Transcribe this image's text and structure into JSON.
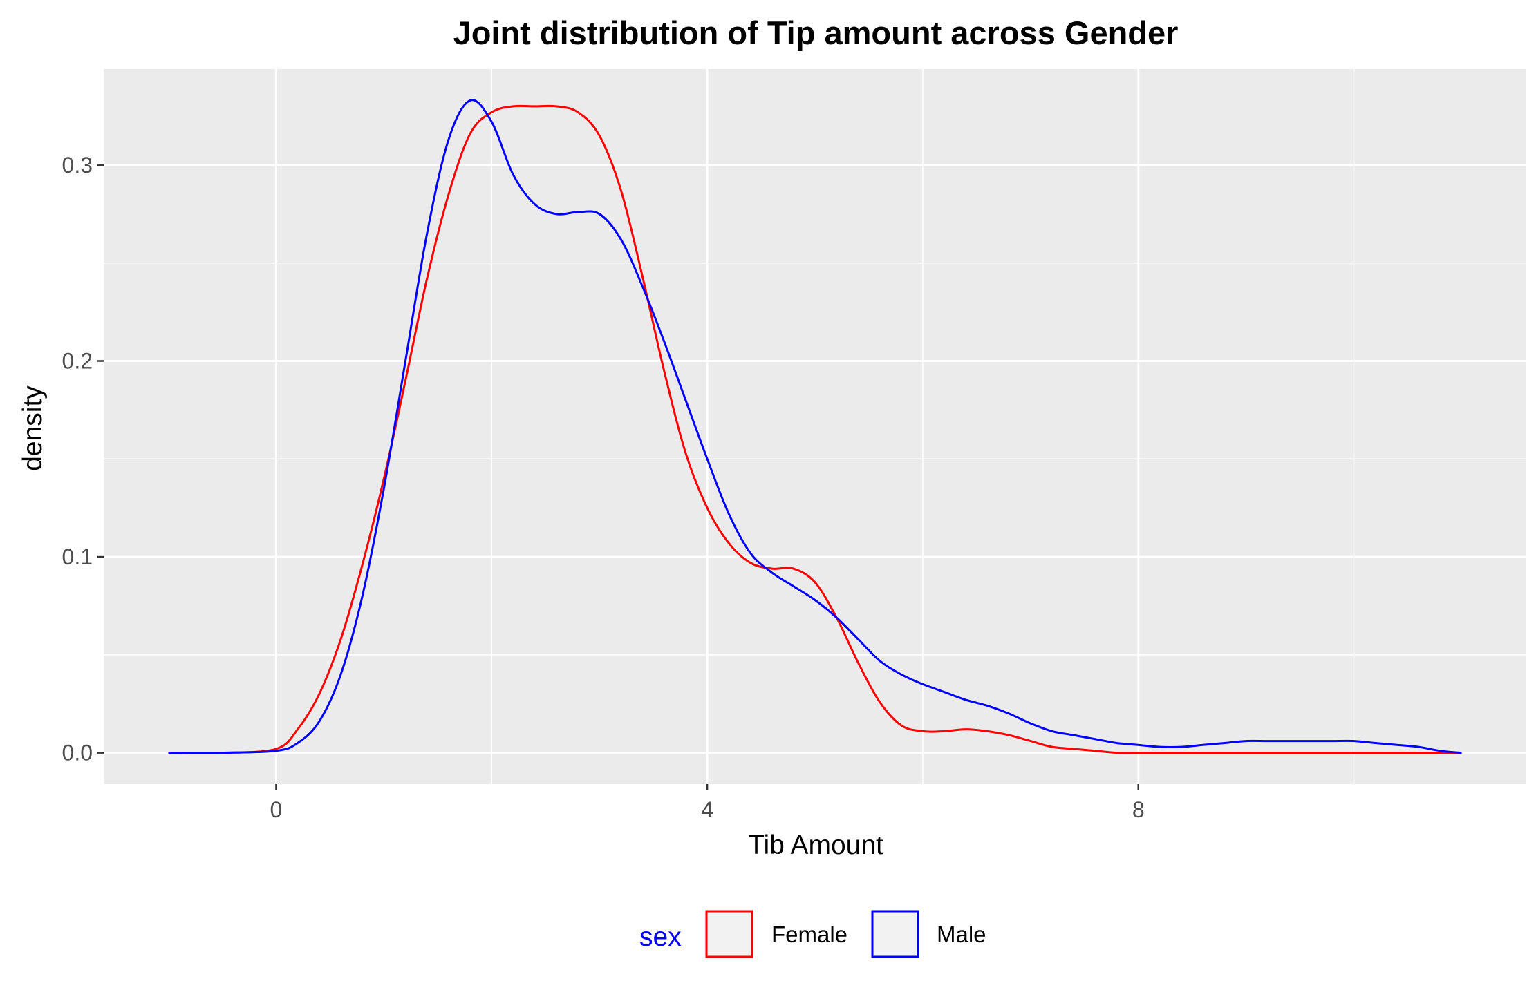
{
  "chart_data": {
    "type": "line",
    "title": "Joint distribution of Tip amount across Gender",
    "xlabel": "Tib Amount",
    "ylabel": "density",
    "xlim": [
      -1.6,
      11.6
    ],
    "ylim": [
      -0.016,
      0.349
    ],
    "x_ticks": [
      0,
      4,
      8
    ],
    "x_tick_labels": [
      "0",
      "4",
      "8"
    ],
    "x_minor_gridlines": [
      2,
      6,
      10
    ],
    "y_ticks": [
      0.0,
      0.1,
      0.2,
      0.3
    ],
    "y_tick_labels": [
      "0.0",
      "0.1",
      "0.2",
      "0.3"
    ],
    "y_minor_gridlines": [
      0.05,
      0.15,
      0.25
    ],
    "grid": true,
    "panel_background": "#ebebeb",
    "legend": {
      "title": "sex",
      "title_color": "#0000ff",
      "position": "bottom",
      "entries": [
        "Female",
        "Male"
      ]
    },
    "series": [
      {
        "name": "Female",
        "color": "#ff0000",
        "x": [
          -1.0,
          -0.5,
          0.0,
          0.2,
          0.4,
          0.6,
          0.8,
          1.0,
          1.2,
          1.4,
          1.6,
          1.8,
          2.0,
          2.2,
          2.4,
          2.6,
          2.8,
          3.0,
          3.2,
          3.4,
          3.6,
          3.8,
          4.0,
          4.2,
          4.4,
          4.6,
          4.8,
          5.0,
          5.2,
          5.4,
          5.6,
          5.8,
          6.0,
          6.2,
          6.4,
          6.6,
          6.8,
          7.0,
          7.2,
          7.4,
          7.6,
          7.8,
          8.0,
          9.0,
          10.0,
          11.0
        ],
        "y": [
          0.0,
          0.0,
          0.002,
          0.012,
          0.03,
          0.058,
          0.096,
          0.14,
          0.19,
          0.242,
          0.285,
          0.316,
          0.327,
          0.33,
          0.33,
          0.33,
          0.327,
          0.315,
          0.287,
          0.243,
          0.195,
          0.153,
          0.125,
          0.107,
          0.097,
          0.094,
          0.094,
          0.087,
          0.069,
          0.046,
          0.026,
          0.014,
          0.011,
          0.011,
          0.012,
          0.011,
          0.009,
          0.006,
          0.003,
          0.002,
          0.001,
          0.0,
          0.0,
          0.0,
          0.0,
          0.0
        ]
      },
      {
        "name": "Male",
        "color": "#0000ff",
        "x": [
          -1.0,
          -0.5,
          0.0,
          0.2,
          0.4,
          0.6,
          0.8,
          1.0,
          1.2,
          1.4,
          1.6,
          1.8,
          2.0,
          2.2,
          2.4,
          2.6,
          2.8,
          3.0,
          3.2,
          3.4,
          3.6,
          3.8,
          4.0,
          4.2,
          4.4,
          4.6,
          4.8,
          5.0,
          5.2,
          5.4,
          5.6,
          5.8,
          6.0,
          6.2,
          6.4,
          6.6,
          6.8,
          7.0,
          7.2,
          7.4,
          7.6,
          7.8,
          8.0,
          8.2,
          8.4,
          8.6,
          8.8,
          9.0,
          9.2,
          9.4,
          9.6,
          9.8,
          10.0,
          10.2,
          10.4,
          10.6,
          10.8,
          11.0
        ],
        "y": [
          0.0,
          0.0,
          0.001,
          0.005,
          0.016,
          0.04,
          0.08,
          0.135,
          0.2,
          0.265,
          0.313,
          0.333,
          0.322,
          0.295,
          0.28,
          0.275,
          0.276,
          0.275,
          0.262,
          0.238,
          0.21,
          0.18,
          0.15,
          0.122,
          0.102,
          0.092,
          0.085,
          0.078,
          0.069,
          0.058,
          0.047,
          0.04,
          0.035,
          0.031,
          0.027,
          0.024,
          0.02,
          0.015,
          0.011,
          0.009,
          0.007,
          0.005,
          0.004,
          0.003,
          0.003,
          0.004,
          0.005,
          0.006,
          0.006,
          0.006,
          0.006,
          0.006,
          0.006,
          0.005,
          0.004,
          0.003,
          0.001,
          0.0
        ]
      }
    ]
  }
}
